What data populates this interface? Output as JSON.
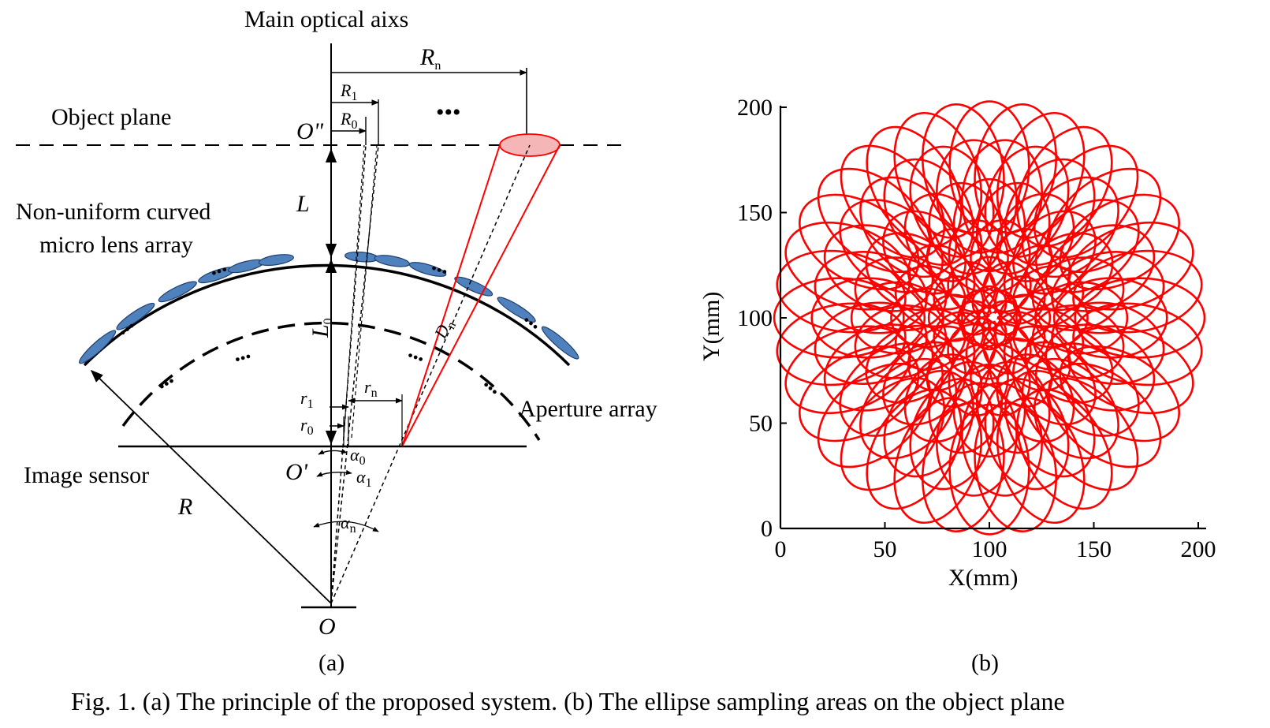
{
  "panel_a": {
    "label": "(a)",
    "main_axis_label": "Main optical aixs",
    "object_plane_label": "Object plane",
    "lens_array_label_line1": "Non-uniform curved",
    "lens_array_label_line2": "micro lens array",
    "aperture_array_label": "Aperture array",
    "image_sensor_label": "Image sensor",
    "ellipsis": "•••",
    "symbols": {
      "Rn_main": "R",
      "Rn_sub": "n",
      "R1_main": "R",
      "R1_sub": "1",
      "R0_main": "R",
      "R0_sub": "0",
      "O_double_prime": "O\"",
      "L": "L",
      "L0_main": "L",
      "L0_sub": "0",
      "Dn_main": "D",
      "Dn_sub": "n",
      "r1_main": "r",
      "r1_sub": "1",
      "r0_main": "r",
      "r0_sub": "0",
      "rn_main": "r",
      "rn_sub": "n",
      "O_prime": "O'",
      "alpha0_main": "α",
      "alpha0_sub": "0",
      "alpha1_main": "α",
      "alpha1_sub": "1",
      "alphan_main": "α",
      "alphan_sub": "n",
      "R": "R",
      "O": "O"
    },
    "colors": {
      "lens_fill": "#4f81bd",
      "ellipse_fill": "#f4b6b6",
      "ray_red": "#ff0000"
    }
  },
  "panel_b": {
    "label": "(b)",
    "chart_data": {
      "type": "scatter",
      "description_visible": "Overlapping ellipse outlines arranged in concentric rings around (100, 100)",
      "xlabel": "X(mm)",
      "ylabel": "Y(mm)",
      "xlim": [
        0,
        200
      ],
      "ylim": [
        0,
        200
      ],
      "x_ticks": [
        "0",
        "50",
        "100",
        "150",
        "200"
      ],
      "y_ticks": [
        "0",
        "50",
        "100",
        "150",
        "200"
      ],
      "center": [
        100,
        100
      ],
      "rings": [
        {
          "radius": 7,
          "count": 8,
          "major_radial": 8,
          "minor": 8
        },
        {
          "radius": 17,
          "count": 12,
          "major_radial": 12,
          "minor": 11
        },
        {
          "radius": 30,
          "count": 18,
          "major_radial": 17,
          "minor": 14
        },
        {
          "radius": 44,
          "count": 24,
          "major_radial": 22,
          "minor": 17
        },
        {
          "radius": 58,
          "count": 30,
          "major_radial": 27,
          "minor": 19
        },
        {
          "radius": 72,
          "count": 36,
          "major_radial": 31,
          "minor": 19
        }
      ],
      "color": "#ff0000"
    }
  },
  "caption": "Fig. 1. (a) The principle of the proposed system. (b) The ellipse sampling areas on the object plane"
}
